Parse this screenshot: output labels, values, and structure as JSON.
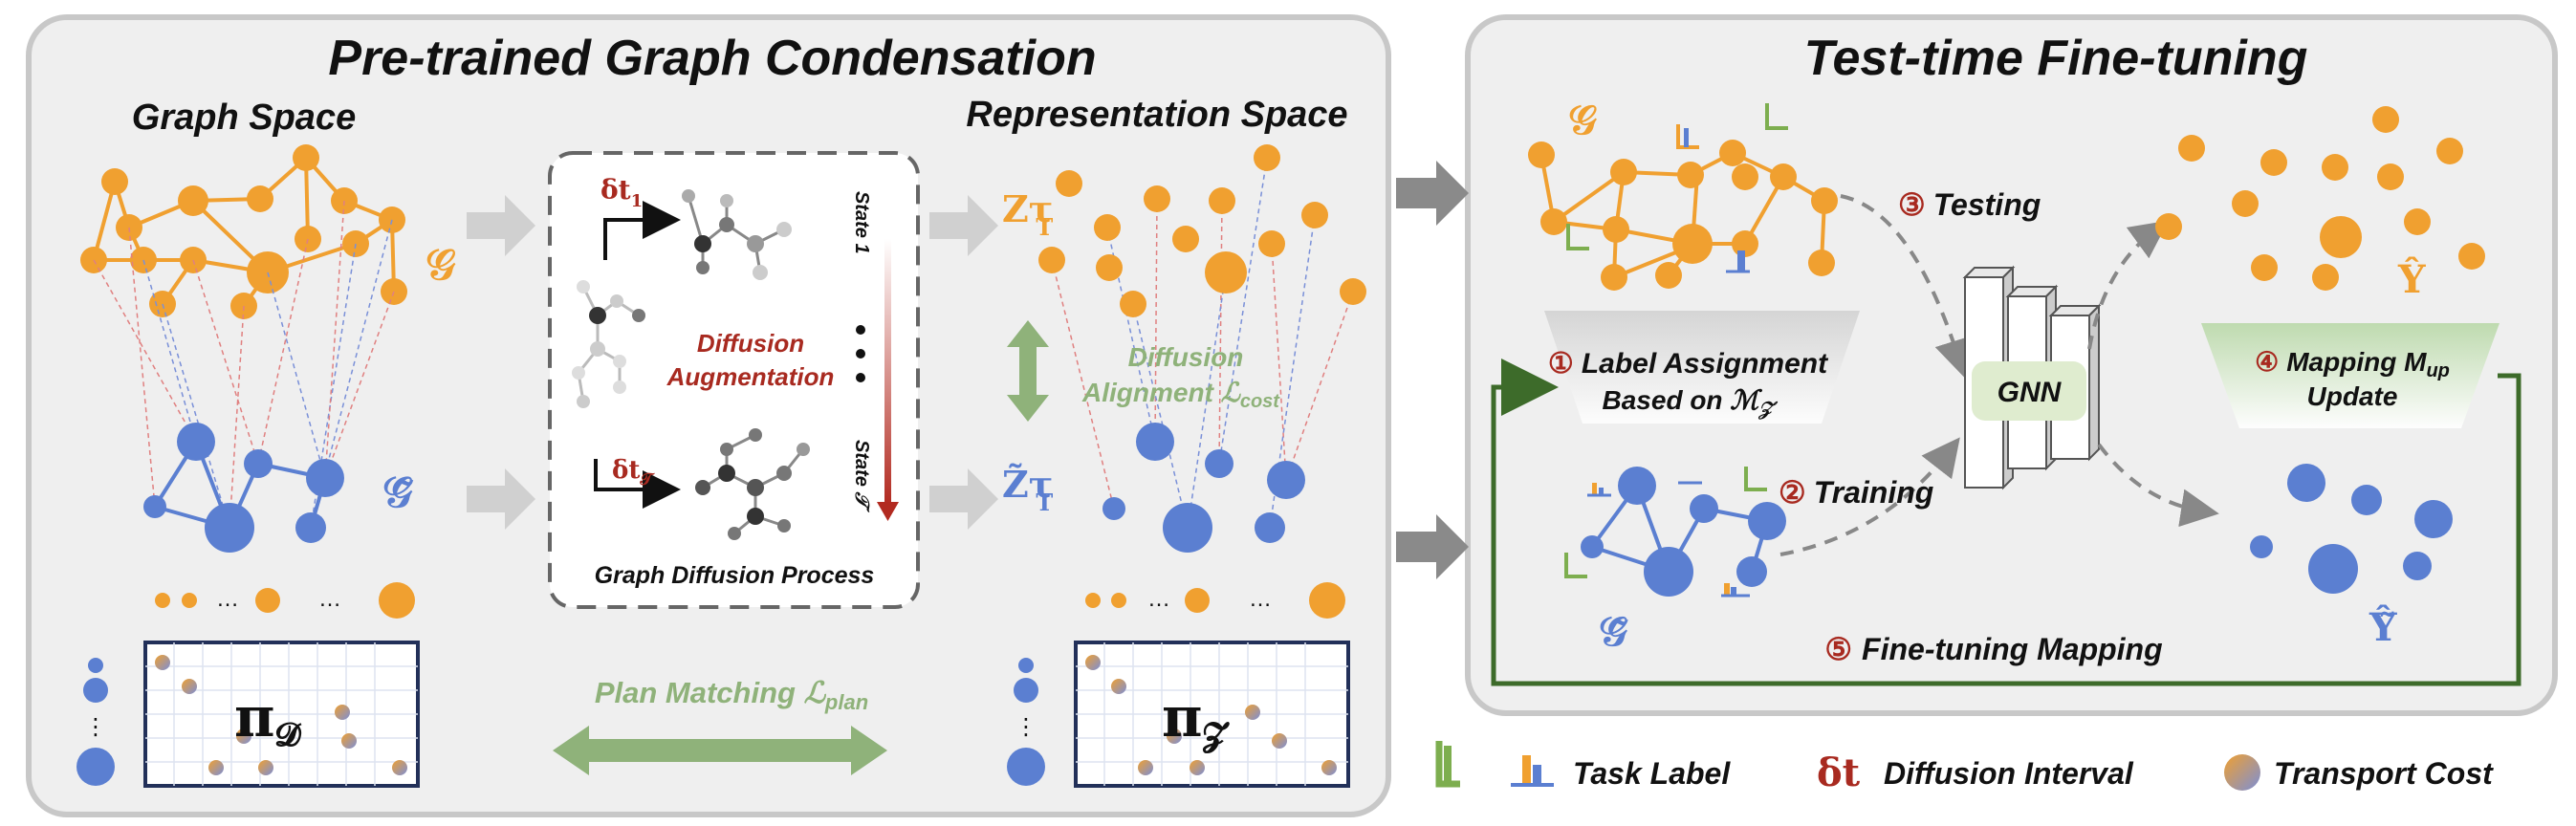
{
  "left_panel": {
    "title": "Pre-trained Graph Condensation",
    "graph_space": "Graph Space",
    "representation_space": "Representation Space",
    "graph_symbol": "𝒢",
    "graph_tilde_symbol": "𝒢̃",
    "z_symbol": "Zτ",
    "z_sub": "T",
    "z_tilde_symbol": "Z̃τ",
    "z_tilde_sub": "T",
    "diffusion_box": {
      "delta_t1": "δt",
      "delta_t1_sub": "1",
      "delta_tT": "δt",
      "delta_tT_sub": "𝒯",
      "state1": "State 1",
      "stateT": "State 𝒯",
      "aug_line1": "Diffusion",
      "aug_line2": "Augmentation",
      "caption": "Graph Diffusion Process"
    },
    "alignment_line1": "Diffusion",
    "alignment_line2": "Alignment ℒ",
    "alignment_sub": "cost",
    "plan_matching": "Plan Matching ℒ",
    "plan_sub": "plan",
    "pi_d": "π",
    "pi_d_sub": "𝓓",
    "pi_z": "π",
    "pi_z_sub": "𝓩",
    "ellipsis": "…",
    "vdots": "⋮"
  },
  "right_panel": {
    "title": "Test-time Fine-tuning",
    "graph_symbol": "𝒢",
    "graph_tilde_symbol": "𝒢̃",
    "y_hat": "Ŷ",
    "y_hat_tilde": "Ŷ̃",
    "step1_num": "①",
    "step1_line1": "Label Assignment",
    "step1_line2": "Based on ℳ",
    "step1_sub": "𝒵",
    "step2_num": "②",
    "step2": "Training",
    "step3_num": "③",
    "step3": "Testing",
    "step4_num": "④",
    "step4_line1": "Mapping M",
    "step4_sub": "up",
    "step4_line2": "Update",
    "step5_num": "⑤",
    "step5": "Fine-tuning Mapping",
    "gnn": "GNN"
  },
  "legend": {
    "task_label": "Task Label",
    "delta_t": "δt",
    "diffusion_interval": "Diffusion Interval",
    "transport_cost": "Transport Cost"
  },
  "colors": {
    "orange": "#f0a030",
    "blue": "#5b7fd1",
    "green": "#8fb27a",
    "dark_green": "#3d6b2a",
    "dark_red": "#a82a20",
    "panel_border": "#c8c8c8"
  }
}
